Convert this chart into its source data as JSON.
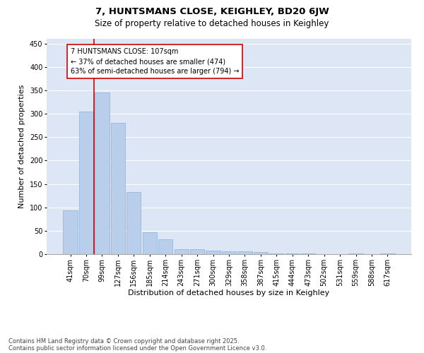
{
  "title1": "7, HUNTSMANS CLOSE, KEIGHLEY, BD20 6JW",
  "title2": "Size of property relative to detached houses in Keighley",
  "xlabel": "Distribution of detached houses by size in Keighley",
  "ylabel": "Number of detached properties",
  "categories": [
    "41sqm",
    "70sqm",
    "99sqm",
    "127sqm",
    "156sqm",
    "185sqm",
    "214sqm",
    "243sqm",
    "271sqm",
    "300sqm",
    "329sqm",
    "358sqm",
    "387sqm",
    "415sqm",
    "444sqm",
    "473sqm",
    "502sqm",
    "531sqm",
    "559sqm",
    "588sqm",
    "617sqm"
  ],
  "values": [
    93,
    305,
    345,
    280,
    133,
    47,
    32,
    10,
    11,
    8,
    6,
    6,
    4,
    2,
    1,
    2,
    0,
    0,
    1,
    0,
    1
  ],
  "bar_color": "#b8ceea",
  "bar_edge_color": "#8ab0d8",
  "bg_color": "#dce6f5",
  "grid_color": "#ffffff",
  "annotation_box_color": "#cc0000",
  "annotation_line_color": "#cc0000",
  "property_bin_index": 2,
  "annotation_text": "7 HUNTSMANS CLOSE: 107sqm\n← 37% of detached houses are smaller (474)\n63% of semi-detached houses are larger (794) →",
  "footnote1": "Contains HM Land Registry data © Crown copyright and database right 2025.",
  "footnote2": "Contains public sector information licensed under the Open Government Licence v3.0.",
  "ylim": [
    0,
    460
  ],
  "yticks": [
    0,
    50,
    100,
    150,
    200,
    250,
    300,
    350,
    400,
    450
  ],
  "title_fontsize": 9.5,
  "subtitle_fontsize": 8.5,
  "axis_label_fontsize": 8,
  "tick_fontsize": 7,
  "annotation_fontsize": 7,
  "footnote_fontsize": 6
}
